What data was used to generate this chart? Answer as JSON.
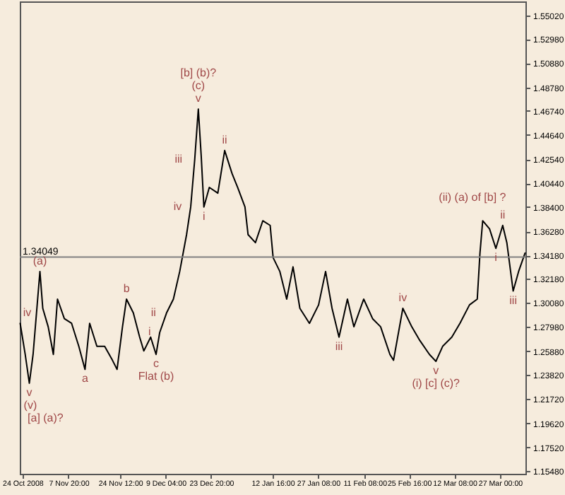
{
  "chart_data": {
    "type": "line",
    "x": [
      "2008-10-23T06:00",
      "2008-10-24T21:00",
      "2008-10-26T05:00",
      "2008-10-27T10:00",
      "2008-10-29T15:00",
      "2008-10-30T13:00",
      "2008-11-01T07:00",
      "2008-11-02T23:00",
      "2008-11-04T07:00",
      "2008-11-06T12:00",
      "2008-11-08T20:00",
      "2008-11-11T04:00",
      "2008-11-13T04:00",
      "2008-11-14T16:00",
      "2008-11-17T00:00",
      "2008-11-19T12:00",
      "2008-11-22T00:00",
      "2008-11-23T12:00",
      "2008-11-25T06:00",
      "2008-11-26T13:00",
      "2008-11-28T18:00",
      "2008-11-30T19:00",
      "2008-12-02T03:00",
      "2008-12-04T08:00",
      "2008-12-06T02:00",
      "2008-12-07T06:00",
      "2008-12-09T11:00",
      "2008-12-11T16:00",
      "2008-12-13T17:00",
      "2008-12-15T22:00",
      "2008-12-17T06:00",
      "2008-12-18T13:00",
      "2008-12-19T17:00",
      "2008-12-20T15:00",
      "2008-12-21T12:00",
      "2008-12-23T06:00",
      "2008-12-26T00:00",
      "2008-12-28T05:00",
      "2008-12-30T14:00",
      "2009-01-01T09:00",
      "2009-01-03T18:00",
      "2009-01-04T18:00",
      "2009-01-07T03:00",
      "2009-01-09T12:00",
      "2009-01-11T21:00",
      "2009-01-12T20:00",
      "2009-01-15T00:00",
      "2009-01-17T05:00",
      "2009-01-19T06:00",
      "2009-01-21T11:00",
      "2009-01-24T13:00",
      "2009-01-27T12:00",
      "2009-01-29T18:00",
      "2009-01-31T20:00",
      "2009-02-03T02:00",
      "2009-02-05T19:00",
      "2009-02-07T21:00",
      "2009-02-11T01:00",
      "2009-02-13T22:00",
      "2009-02-16T12:00",
      "2009-02-19T12:00",
      "2009-02-20T16:00",
      "2009-02-23T16:00",
      "2009-02-26T13:00",
      "2009-03-01T04:00",
      "2009-03-04T06:00",
      "2009-03-06T08:00",
      "2009-03-08T12:00",
      "2009-03-11T11:00",
      "2009-03-14T02:00",
      "2009-03-17T04:00",
      "2009-03-19T16:00",
      "2009-03-20T13:00",
      "2009-03-21T10:00",
      "2009-03-23T15:00",
      "2009-03-25T16:00",
      "2009-03-27T21:00",
      "2009-03-29T05:00",
      "2009-03-31T06:00",
      "2009-04-02T00:00",
      "2009-04-04T02:00"
    ],
    "series": [
      {
        "color": "#000000",
        "values": [
          1.283,
          1.256,
          1.231,
          1.256,
          1.328,
          1.296,
          1.28,
          1.256,
          1.304,
          1.287,
          1.283,
          1.263,
          1.243,
          1.283,
          1.263,
          1.263,
          1.251,
          1.243,
          1.28,
          1.304,
          1.292,
          1.271,
          1.259,
          1.271,
          1.256,
          1.275,
          1.292,
          1.304,
          1.328,
          1.36,
          1.384,
          1.425,
          1.469,
          1.429,
          1.384,
          1.401,
          1.396,
          1.433,
          1.413,
          1.401,
          1.384,
          1.36,
          1.353,
          1.372,
          1.368,
          1.34,
          1.328,
          1.304,
          1.332,
          1.296,
          1.283,
          1.299,
          1.328,
          1.296,
          1.271,
          1.304,
          1.28,
          1.304,
          1.287,
          1.28,
          1.256,
          1.251,
          1.296,
          1.28,
          1.268,
          1.256,
          1.25,
          1.263,
          1.271,
          1.283,
          1.299,
          1.304,
          1.344,
          1.372,
          1.365,
          1.348,
          1.368,
          1.353,
          1.311,
          1.328,
          1.344
        ]
      }
    ],
    "xlim": [
      "2008-10-23T03:00",
      "2009-04-04T05:00"
    ],
    "xticks": [
      {
        "value": "2008-10-24T00:00",
        "label": "24 Oct 2008"
      },
      {
        "value": "2008-11-07T20:00",
        "label": "7 Nov 20:00"
      },
      {
        "value": "2008-11-24T12:00",
        "label": "24 Nov 12:00"
      },
      {
        "value": "2008-12-09T04:00",
        "label": "9 Dec 04:00"
      },
      {
        "value": "2008-12-23T20:00",
        "label": "23 Dec 20:00"
      },
      {
        "value": "2009-01-12T16:00",
        "label": "12 Jan 16:00"
      },
      {
        "value": "2009-01-27T08:00",
        "label": "27 Jan 08:00"
      },
      {
        "value": "2009-02-11T08:00",
        "label": "11 Feb 08:00"
      },
      {
        "value": "2009-02-25T16:00",
        "label": "25 Feb 16:00"
      },
      {
        "value": "2009-03-12T08:00",
        "label": "12 Mar 08:00"
      },
      {
        "value": "2009-03-27T00:00",
        "label": "27 Mar 00:00"
      }
    ],
    "ylim": [
      1.1524,
      1.5624
    ],
    "yticks": [
      {
        "value": 1.5502,
        "label": "1.55020"
      },
      {
        "value": 1.5298,
        "label": "1.52980"
      },
      {
        "value": 1.5088,
        "label": "1.50880"
      },
      {
        "value": 1.4878,
        "label": "1.48780"
      },
      {
        "value": 1.4674,
        "label": "1.46740"
      },
      {
        "value": 1.4464,
        "label": "1.44640"
      },
      {
        "value": 1.4254,
        "label": "1.42540"
      },
      {
        "value": 1.4044,
        "label": "1.40440"
      },
      {
        "value": 1.384,
        "label": "1.38400"
      },
      {
        "value": 1.3628,
        "label": "1.36280"
      },
      {
        "value": 1.3418,
        "label": "1.34180"
      },
      {
        "value": 1.3218,
        "label": "1.32180"
      },
      {
        "value": 1.3008,
        "label": "1.30080"
      },
      {
        "value": 1.2798,
        "label": "1.27980"
      },
      {
        "value": 1.2588,
        "label": "1.25880"
      },
      {
        "value": 1.2382,
        "label": "1.23820"
      },
      {
        "value": 1.2172,
        "label": "1.21720"
      },
      {
        "value": 1.1962,
        "label": "1.19620"
      },
      {
        "value": 1.1752,
        "label": "1.17520"
      },
      {
        "value": 1.1548,
        "label": "1.15480"
      }
    ],
    "ref_lines": [
      {
        "axis": "y",
        "value": 1.34049,
        "label": "1.34049",
        "color": "#808080"
      }
    ],
    "annotations": [
      {
        "text": "v",
        "x": "2008-12-19T17:00",
        "y": 1.469
      },
      {
        "text": "(c)",
        "x": "2008-12-19T17:00",
        "y": 1.469
      },
      {
        "text": "[b] (b)?",
        "x": "2008-12-19T17:00",
        "y": 1.469
      },
      {
        "text": "iii",
        "x": "2008-12-18T13:00",
        "y": 1.425
      },
      {
        "text": "iv",
        "x": "2008-12-17T06:00",
        "y": 1.384
      },
      {
        "text": "i",
        "x": "2008-12-21T12:00",
        "y": 1.384
      },
      {
        "text": "ii",
        "x": "2008-12-28T05:00",
        "y": 1.433
      },
      {
        "text": "(a)",
        "x": "2008-10-29T15:00",
        "y": 1.328
      },
      {
        "text": "iv",
        "x": "2008-10-23T06:00",
        "y": 1.283
      },
      {
        "text": "v",
        "x": "2008-10-26T05:00",
        "y": 1.231
      },
      {
        "text": "(v)",
        "x": "2008-10-26T05:00",
        "y": 1.231
      },
      {
        "text": "[a] (a)?",
        "x": "2008-10-26T05:00",
        "y": 1.231
      },
      {
        "text": "a",
        "x": "2008-11-13T04:00",
        "y": 1.243
      },
      {
        "text": "b",
        "x": "2008-11-26T13:00",
        "y": 1.304
      },
      {
        "text": "c",
        "x": "2008-12-06T02:00",
        "y": 1.256
      },
      {
        "text": "Flat (b)",
        "x": "2008-12-06T02:00",
        "y": 1.256
      },
      {
        "text": "i",
        "x": "2008-12-07T06:00",
        "y": 1.275
      },
      {
        "text": "ii",
        "x": "2008-12-09T11:00",
        "y": 1.292
      },
      {
        "text": "iii",
        "x": "2009-02-03T02:00",
        "y": 1.271
      },
      {
        "text": "iv",
        "x": "2009-02-23T16:00",
        "y": 1.296
      },
      {
        "text": "v",
        "x": "2009-03-06T08:00",
        "y": 1.25
      },
      {
        "text": "(i) [c] (c)?",
        "x": "2009-03-06T08:00",
        "y": 1.25
      },
      {
        "text": "ii",
        "x": "2009-03-27T21:00",
        "y": 1.368
      },
      {
        "text": "(ii) (a) of [b] ?",
        "x": "2009-03-21T10:00",
        "y": 1.372
      },
      {
        "text": "i",
        "x": "2009-03-25T16:00",
        "y": 1.348
      },
      {
        "text": "iii",
        "x": "2009-03-31T06:00",
        "y": 1.311
      }
    ],
    "grid": false
  }
}
